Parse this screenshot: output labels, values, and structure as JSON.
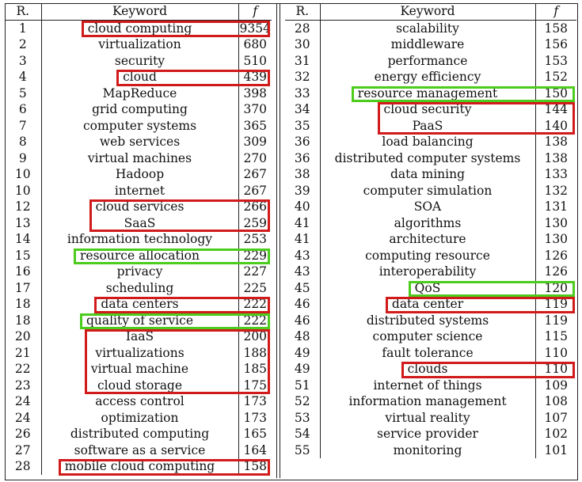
{
  "headers": {
    "rank": "R.",
    "keyword": "Keyword",
    "freq": "f"
  },
  "left_rows": [
    {
      "r": "1",
      "k": "cloud computing",
      "f": "9354"
    },
    {
      "r": "2",
      "k": "virtualization",
      "f": "680"
    },
    {
      "r": "3",
      "k": "security",
      "f": "510"
    },
    {
      "r": "4",
      "k": "cloud",
      "f": "439"
    },
    {
      "r": "5",
      "k": "MapReduce",
      "f": "398"
    },
    {
      "r": "6",
      "k": "grid computing",
      "f": "370"
    },
    {
      "r": "7",
      "k": "computer systems",
      "f": "365"
    },
    {
      "r": "8",
      "k": "web services",
      "f": "309"
    },
    {
      "r": "9",
      "k": "virtual machines",
      "f": "270"
    },
    {
      "r": "10",
      "k": "Hadoop",
      "f": "267"
    },
    {
      "r": "10",
      "k": "internet",
      "f": "267"
    },
    {
      "r": "12",
      "k": "cloud services",
      "f": "266"
    },
    {
      "r": "13",
      "k": "SaaS",
      "f": "259"
    },
    {
      "r": "14",
      "k": "information technology",
      "f": "253"
    },
    {
      "r": "15",
      "k": "resource allocation",
      "f": "229"
    },
    {
      "r": "16",
      "k": "privacy",
      "f": "227"
    },
    {
      "r": "17",
      "k": "scheduling",
      "f": "225"
    },
    {
      "r": "18",
      "k": "data centers",
      "f": "222"
    },
    {
      "r": "18",
      "k": "quality of service",
      "f": "222"
    },
    {
      "r": "20",
      "k": "IaaS",
      "f": "200"
    },
    {
      "r": "21",
      "k": "virtualizations",
      "f": "188"
    },
    {
      "r": "22",
      "k": "virtual machine",
      "f": "185"
    },
    {
      "r": "23",
      "k": "cloud storage",
      "f": "175"
    },
    {
      "r": "24",
      "k": "access control",
      "f": "173"
    },
    {
      "r": "24",
      "k": "optimization",
      "f": "173"
    },
    {
      "r": "26",
      "k": "distributed computing",
      "f": "165"
    },
    {
      "r": "27",
      "k": "software as a service",
      "f": "164"
    },
    {
      "r": "28",
      "k": "mobile cloud computing",
      "f": "158"
    }
  ],
  "right_rows": [
    {
      "r": "28",
      "k": "scalability",
      "f": "158"
    },
    {
      "r": "30",
      "k": "middleware",
      "f": "156"
    },
    {
      "r": "31",
      "k": "performance",
      "f": "153"
    },
    {
      "r": "32",
      "k": "energy efficiency",
      "f": "152"
    },
    {
      "r": "33",
      "k": "resource management",
      "f": "150"
    },
    {
      "r": "34",
      "k": "cloud security",
      "f": "144"
    },
    {
      "r": "35",
      "k": "PaaS",
      "f": "140"
    },
    {
      "r": "36",
      "k": "load balancing",
      "f": "138"
    },
    {
      "r": "36",
      "k": "distributed computer systems",
      "f": "138"
    },
    {
      "r": "38",
      "k": "data mining",
      "f": "133"
    },
    {
      "r": "39",
      "k": "computer simulation",
      "f": "132"
    },
    {
      "r": "40",
      "k": "SOA",
      "f": "131"
    },
    {
      "r": "41",
      "k": "algorithms",
      "f": "130"
    },
    {
      "r": "41",
      "k": "architecture",
      "f": "130"
    },
    {
      "r": "43",
      "k": "computing resource",
      "f": "126"
    },
    {
      "r": "43",
      "k": "interoperability",
      "f": "126"
    },
    {
      "r": "45",
      "k": "QoS",
      "f": "120"
    },
    {
      "r": "46",
      "k": "data center",
      "f": "119"
    },
    {
      "r": "46",
      "k": "distributed systems",
      "f": "119"
    },
    {
      "r": "48",
      "k": "computer science",
      "f": "115"
    },
    {
      "r": "49",
      "k": "fault tolerance",
      "f": "110"
    },
    {
      "r": "49",
      "k": "clouds",
      "f": "110"
    },
    {
      "r": "51",
      "k": "internet of things",
      "f": "109"
    },
    {
      "r": "52",
      "k": "information management",
      "f": "108"
    },
    {
      "r": "53",
      "k": "virtual reality",
      "f": "107"
    },
    {
      "r": "54",
      "k": "service provider",
      "f": "102"
    },
    {
      "r": "55",
      "k": "monitoring",
      "f": "101"
    }
  ],
  "highlight_colors": {
    "red": "#d11a1a",
    "green": "#4ccc1c"
  },
  "highlights": [
    {
      "table": "left",
      "from": 0,
      "to": 0,
      "color": "red"
    },
    {
      "table": "left",
      "from": 3,
      "to": 3,
      "color": "red"
    },
    {
      "table": "left",
      "from": 11,
      "to": 12,
      "color": "red"
    },
    {
      "table": "left",
      "from": 14,
      "to": 14,
      "color": "green"
    },
    {
      "table": "left",
      "from": 17,
      "to": 17,
      "color": "red"
    },
    {
      "table": "left",
      "from": 18,
      "to": 18,
      "color": "green"
    },
    {
      "table": "left",
      "from": 19,
      "to": 22,
      "color": "red"
    },
    {
      "table": "left",
      "from": 27,
      "to": 27,
      "color": "red"
    },
    {
      "table": "right",
      "from": 4,
      "to": 4,
      "color": "green"
    },
    {
      "table": "right",
      "from": 5,
      "to": 6,
      "color": "red"
    },
    {
      "table": "right",
      "from": 16,
      "to": 16,
      "color": "green"
    },
    {
      "table": "right",
      "from": 17,
      "to": 17,
      "color": "red"
    },
    {
      "table": "right",
      "from": 21,
      "to": 21,
      "color": "red"
    }
  ]
}
